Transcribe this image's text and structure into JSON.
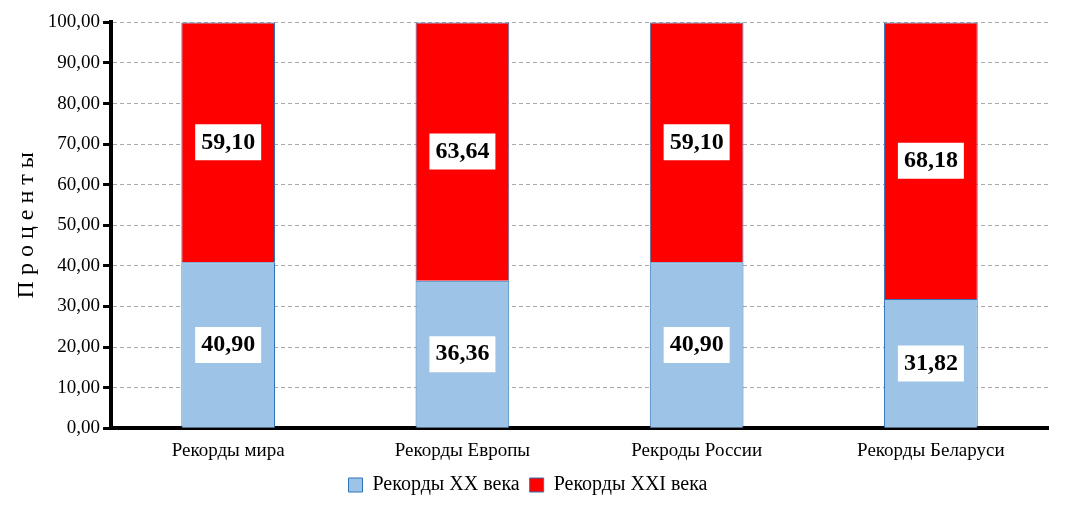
{
  "chart_data": {
    "type": "bar",
    "stacked": true,
    "ylabel": "П р о ц е н т ы",
    "categories": [
      "Рекорды мира",
      "Рекорды Европы",
      "Рекроды России",
      "Рекорды Беларуси"
    ],
    "series": [
      {
        "name": "Рекорды XX века",
        "color": "#9dc3e6",
        "values": [
          40.9,
          36.36,
          40.9,
          31.82
        ],
        "value_labels": [
          "40,90",
          "36,36",
          "40,90",
          "31,82"
        ]
      },
      {
        "name": "Рекорды XXI века",
        "color": "#ff0000",
        "values": [
          59.1,
          63.64,
          59.1,
          68.18
        ],
        "value_labels": [
          "59,10",
          "63,64",
          "59,10",
          "68,18"
        ]
      }
    ],
    "ylim": [
      0,
      100
    ],
    "yticks": [
      {
        "value": 0,
        "label": "0,00"
      },
      {
        "value": 10,
        "label": "10,00"
      },
      {
        "value": 20,
        "label": "20,00"
      },
      {
        "value": 30,
        "label": "30,00"
      },
      {
        "value": 40,
        "label": "40,00"
      },
      {
        "value": 50,
        "label": "50,00"
      },
      {
        "value": 60,
        "label": "60,00"
      },
      {
        "value": 70,
        "label": "70,00"
      },
      {
        "value": 80,
        "label": "80,00"
      },
      {
        "value": 90,
        "label": "90,00"
      },
      {
        "value": 100,
        "label": "100,00"
      }
    ],
    "grid": "y",
    "legend": "bottom"
  }
}
